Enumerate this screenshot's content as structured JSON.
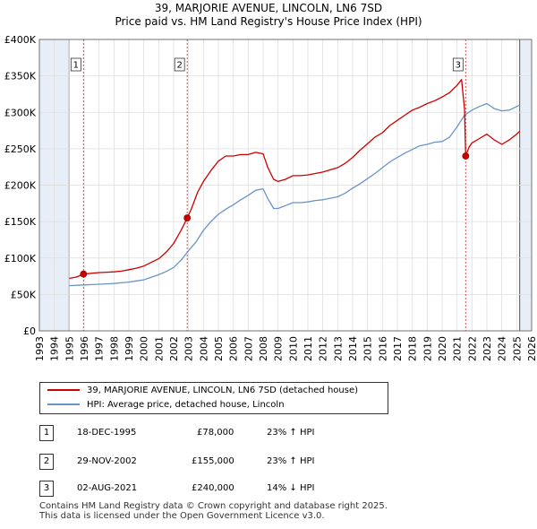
{
  "title_line1": "39, MARJORIE AVENUE, LINCOLN, LN6 7SD",
  "title_line2": "Price paid vs. HM Land Registry's House Price Index (HPI)",
  "colors": {
    "property": "#cc0000",
    "hpi": "#6a93c8",
    "grid": "#dddddd",
    "shade": "#e8eef8"
  },
  "legend": {
    "property": "39, MARJORIE AVENUE, LINCOLN, LN6 7SD (detached house)",
    "hpi": "HPI: Average price, detached house, Lincoln"
  },
  "transactions": [
    {
      "num": "1",
      "date": "18-DEC-1995",
      "price": "£78,000",
      "hpi_delta": "23% ↑ HPI"
    },
    {
      "num": "2",
      "date": "29-NOV-2002",
      "price": "£155,000",
      "hpi_delta": "23% ↑ HPI"
    },
    {
      "num": "3",
      "date": "02-AUG-2021",
      "price": "£240,000",
      "hpi_delta": "14% ↓ HPI"
    }
  ],
  "footer": {
    "line1": "Contains HM Land Registry data © Crown copyright and database right 2025.",
    "line2": "This data is licensed under the Open Government Licence v3.0."
  },
  "chart_data": {
    "type": "line",
    "title": "Price paid vs. HM Land Registry's House Price Index (HPI)",
    "xlim": [
      1993,
      2026
    ],
    "ylim": [
      0,
      400000
    ],
    "x_ticks": [
      "1993",
      "1994",
      "1995",
      "1996",
      "1997",
      "1998",
      "1999",
      "2000",
      "2001",
      "2002",
      "2003",
      "2004",
      "2005",
      "2006",
      "2007",
      "2008",
      "2009",
      "2010",
      "2011",
      "2012",
      "2013",
      "2014",
      "2015",
      "2016",
      "2017",
      "2018",
      "2019",
      "2020",
      "2021",
      "2022",
      "2023",
      "2024",
      "2025",
      "2026"
    ],
    "y_ticks": [
      {
        "value": 0,
        "label": "£0"
      },
      {
        "value": 50000,
        "label": "£50K"
      },
      {
        "value": 100000,
        "label": "£100K"
      },
      {
        "value": 150000,
        "label": "£150K"
      },
      {
        "value": 200000,
        "label": "£200K"
      },
      {
        "value": 250000,
        "label": "£250K"
      },
      {
        "value": 300000,
        "label": "£300K"
      },
      {
        "value": 350000,
        "label": "£350K"
      },
      {
        "value": 400000,
        "label": "£400K"
      }
    ],
    "shaded_ranges": [
      [
        1993,
        1995.0
      ],
      [
        2025.2,
        2026
      ]
    ],
    "markers": [
      {
        "label": "1",
        "x": 1995.96,
        "y": 78000
      },
      {
        "label": "2",
        "x": 2002.91,
        "y": 155000
      },
      {
        "label": "3",
        "x": 2021.58,
        "y": 240000
      }
    ],
    "series": [
      {
        "name": "39, MARJORIE AVENUE, LINCOLN, LN6 7SD (detached house)",
        "x": [
          1995.0,
          1995.5,
          1995.96,
          1996.5,
          1997,
          1997.5,
          1998,
          1998.5,
          1999,
          1999.5,
          2000,
          2000.5,
          2001,
          2001.5,
          2002,
          2002.5,
          2002.91,
          2003.2,
          2003.6,
          2004,
          2004.5,
          2005,
          2005.5,
          2006,
          2006.5,
          2007,
          2007.5,
          2008,
          2008.3,
          2008.7,
          2009,
          2009.5,
          2010,
          2010.5,
          2011,
          2011.5,
          2012,
          2012.5,
          2013,
          2013.5,
          2014,
          2014.5,
          2015,
          2015.5,
          2016,
          2016.5,
          2017,
          2017.5,
          2018,
          2018.5,
          2019,
          2019.5,
          2020,
          2020.5,
          2021,
          2021.3,
          2021.5,
          2021.58,
          2021.8,
          2022,
          2022.5,
          2023,
          2023.5,
          2024,
          2024.5,
          2025,
          2025.2
        ],
        "values": [
          72000,
          74000,
          78000,
          79000,
          80000,
          80500,
          81000,
          82000,
          84000,
          86000,
          89000,
          94000,
          99000,
          108000,
          120000,
          138000,
          155000,
          168000,
          190000,
          205000,
          220000,
          233000,
          240000,
          240000,
          242000,
          242000,
          245000,
          243000,
          225000,
          208000,
          205000,
          208000,
          213000,
          213000,
          214000,
          216000,
          218000,
          221000,
          224000,
          230000,
          238000,
          248000,
          257000,
          266000,
          272000,
          282000,
          289000,
          296000,
          303000,
          307000,
          312000,
          316000,
          321000,
          327000,
          337000,
          345000,
          305000,
          240000,
          252000,
          258000,
          264000,
          270000,
          262000,
          256000,
          262000,
          270000,
          274000
        ]
      },
      {
        "name": "HPI: Average price, detached house, Lincoln",
        "x": [
          1995.0,
          1995.5,
          1996,
          1996.5,
          1997,
          1997.5,
          1998,
          1998.5,
          1999,
          1999.5,
          2000,
          2000.5,
          2001,
          2001.5,
          2002,
          2002.5,
          2003,
          2003.5,
          2004,
          2004.5,
          2005,
          2005.5,
          2006,
          2006.5,
          2007,
          2007.5,
          2008,
          2008.3,
          2008.7,
          2009,
          2009.5,
          2010,
          2010.5,
          2011,
          2011.5,
          2012,
          2012.5,
          2013,
          2013.5,
          2014,
          2014.5,
          2015,
          2015.5,
          2016,
          2016.5,
          2017,
          2017.5,
          2018,
          2018.5,
          2019,
          2019.5,
          2020,
          2020.5,
          2021,
          2021.5,
          2022,
          2022.5,
          2023,
          2023.5,
          2024,
          2024.5,
          2025,
          2025.2
        ],
        "values": [
          62000,
          62500,
          63000,
          63500,
          64000,
          64500,
          65000,
          66000,
          67000,
          68500,
          70000,
          73500,
          77000,
          81500,
          87000,
          97000,
          110000,
          122000,
          138000,
          150000,
          160000,
          167000,
          173000,
          180000,
          186000,
          193000,
          195000,
          182000,
          168000,
          168000,
          172000,
          176000,
          176000,
          177000,
          179000,
          180000,
          182000,
          184000,
          189000,
          196000,
          202000,
          209000,
          216000,
          224000,
          232000,
          238000,
          244000,
          249000,
          254000,
          256000,
          259000,
          260000,
          266000,
          280000,
          296000,
          303000,
          308000,
          312000,
          305000,
          302000,
          303000,
          308000,
          310000
        ]
      }
    ]
  }
}
